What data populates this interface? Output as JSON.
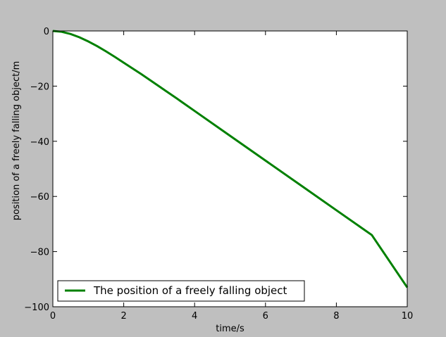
{
  "chart_data": {
    "type": "line",
    "xlabel": "time/s",
    "ylabel": "position of a freely falling object/m",
    "xlim": [
      0,
      10
    ],
    "ylim": [
      -100,
      0
    ],
    "xticks": [
      0,
      2,
      4,
      6,
      8,
      10
    ],
    "yticks": [
      0,
      -20,
      -40,
      -60,
      -80,
      -100
    ],
    "grid": false,
    "legend_position": "lower-left",
    "series": [
      {
        "name": "The position of a freely falling object",
        "color": "#008000",
        "x": [
          0,
          0.25,
          0.5,
          0.75,
          1,
          1.25,
          1.5,
          1.75,
          2,
          2.5,
          3,
          3.5,
          4,
          5,
          6,
          7,
          8,
          9,
          10
        ],
        "y": [
          0,
          -0.3,
          -1.1,
          -2.3,
          -3.8,
          -5.5,
          -7.4,
          -9.4,
          -11.5,
          -15.7,
          -20.1,
          -24.5,
          -29.0,
          -38.0,
          -47.0,
          -56.0,
          -65.0,
          -74.0,
          -93.0
        ]
      }
    ]
  }
}
